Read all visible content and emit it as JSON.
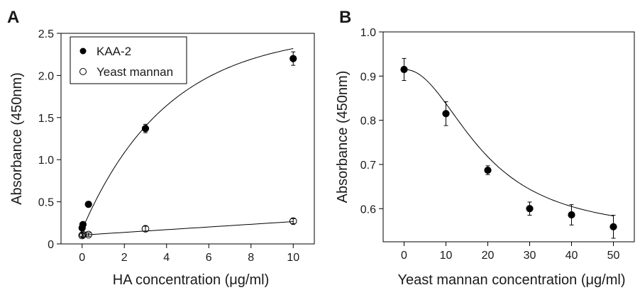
{
  "chart_data": [
    {
      "panel_label": "A",
      "type": "scatter",
      "xlabel": "HA concentration (μg/ml)",
      "ylabel": "Absorbance (450nm)",
      "xlim": [
        -1,
        11
      ],
      "ylim": [
        0,
        2.5
      ],
      "xticks": [
        "0",
        "2",
        "4",
        "6",
        "8",
        "10"
      ],
      "yticks": [
        "0",
        "0.5",
        "1.0",
        "1.5",
        "2.0",
        "2.5"
      ],
      "grid": false,
      "legend": "top-left",
      "series": [
        {
          "name": "KAA-2",
          "marker": "filled-circle",
          "color": "#000000",
          "x": [
            0,
            0.04,
            0.3,
            3,
            10
          ],
          "y": [
            0.19,
            0.23,
            0.47,
            1.37,
            2.2
          ],
          "err": [
            0.02,
            0.02,
            0.03,
            0.05,
            0.08
          ]
        },
        {
          "name": "Yeast mannan",
          "marker": "open-circle",
          "color": "#000000",
          "x": [
            0,
            0.04,
            0.3,
            3,
            10
          ],
          "y": [
            0.1,
            0.11,
            0.11,
            0.18,
            0.27
          ],
          "err": [
            0.02,
            0.02,
            0.02,
            0.03,
            0.03
          ]
        }
      ]
    },
    {
      "panel_label": "B",
      "type": "scatter",
      "xlabel": "Yeast mannan concentration (μg/ml)",
      "ylabel": "Absorbance (450nm)",
      "xlim": [
        -5,
        55
      ],
      "ylim": [
        0.525,
        1.0
      ],
      "xticks": [
        "0",
        "10",
        "20",
        "30",
        "40",
        "50"
      ],
      "yticks": [
        "0.6",
        "0.7",
        "0.8",
        "0.9",
        "1.0"
      ],
      "grid": false,
      "series": [
        {
          "marker": "filled-circle",
          "color": "#000000",
          "x": [
            0,
            10,
            20,
            30,
            40,
            50
          ],
          "y": [
            0.915,
            0.815,
            0.687,
            0.6,
            0.586,
            0.559
          ],
          "err": [
            0.025,
            0.027,
            0.01,
            0.015,
            0.023,
            0.026
          ]
        }
      ]
    }
  ]
}
